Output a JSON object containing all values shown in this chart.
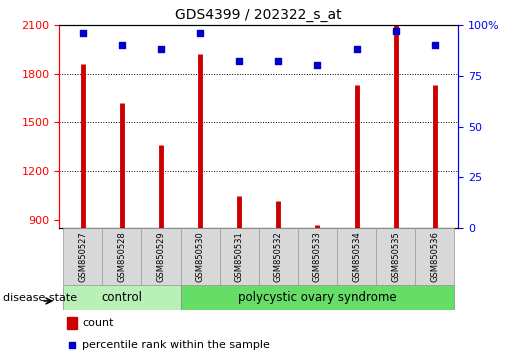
{
  "title": "GDS4399 / 202322_s_at",
  "samples": [
    "GSM850527",
    "GSM850528",
    "GSM850529",
    "GSM850530",
    "GSM850531",
    "GSM850532",
    "GSM850533",
    "GSM850534",
    "GSM850535",
    "GSM850536"
  ],
  "counts": [
    1860,
    1620,
    1360,
    1920,
    1050,
    1020,
    870,
    1730,
    2100,
    1730
  ],
  "percentiles": [
    96,
    90,
    88,
    96,
    82,
    82,
    80,
    88,
    97,
    90
  ],
  "ylim_left": [
    850,
    2100
  ],
  "ylim_right": [
    0,
    100
  ],
  "yticks_left": [
    900,
    1200,
    1500,
    1800,
    2100
  ],
  "yticks_right": [
    0,
    25,
    50,
    75,
    100
  ],
  "ytick_right_labels": [
    "0",
    "25",
    "50",
    "75",
    "100%"
  ],
  "bar_color": "#cc0000",
  "scatter_color": "#0000cc",
  "bar_width": 0.08,
  "groups": [
    {
      "label": "control",
      "indices": [
        0,
        1,
        2
      ],
      "color": "#b8f0b8"
    },
    {
      "label": "polycystic ovary syndrome",
      "indices": [
        3,
        4,
        5,
        6,
        7,
        8,
        9
      ],
      "color": "#66dd66"
    }
  ],
  "disease_state_label": "disease state",
  "legend_count_label": "count",
  "legend_percentile_label": "percentile rank within the sample",
  "grid_linestyle": ":"
}
